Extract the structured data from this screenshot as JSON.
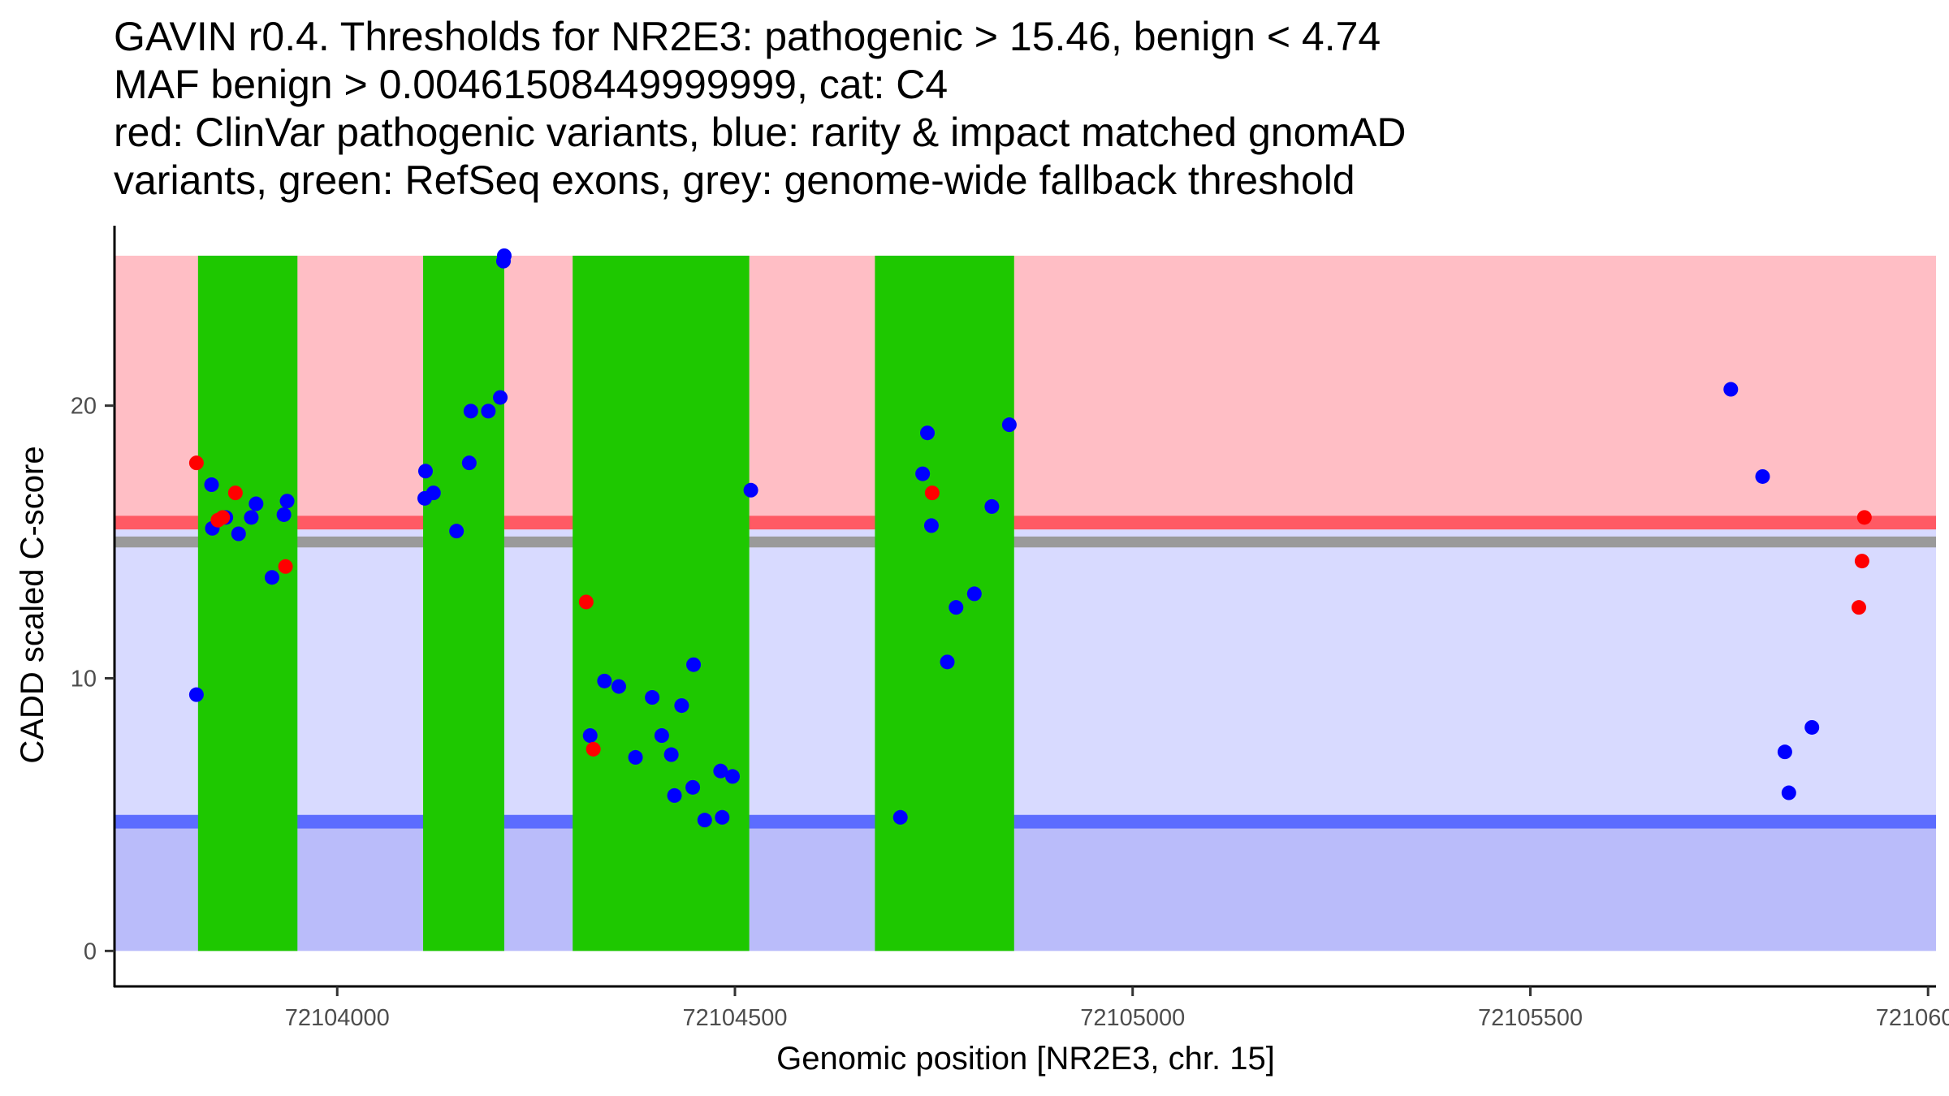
{
  "chart_data": {
    "type": "scatter",
    "title_lines": [
      "GAVIN r0.4. Thresholds for NR2E3: pathogenic > 15.46, benign < 4.74",
      "MAF benign > 0.00461508449999999, cat: C4",
      "red: ClinVar pathogenic variants, blue: rarity & impact matched gnomAD",
      "variants, green: RefSeq exons, grey: genome-wide fallback threshold"
    ],
    "xlabel": "Genomic position [NR2E3, chr. 15]",
    "ylabel": "CADD scaled C-score",
    "xlim": [
      72103720,
      72106010
    ],
    "ylim": [
      -1.3,
      26.6
    ],
    "x_ticks": [
      72104000,
      72104500,
      72105000,
      72105500,
      72106000
    ],
    "x_tick_labels": [
      "72104000",
      "72104500",
      "72105000",
      "72105500",
      "72106000"
    ],
    "y_ticks": [
      0,
      10,
      20
    ],
    "y_tick_labels": [
      "0",
      "10",
      "20"
    ],
    "grid": false,
    "score_max": 25.5,
    "thresholds": {
      "pathogenic": 15.46,
      "benign": 4.74,
      "fallback_low": 14.8,
      "fallback_high": 15.2
    },
    "colors": {
      "pathogenic_region": "#ffbec5",
      "middle_region": "#d8daff",
      "benign_region": "#babcfa",
      "pathogenic_line": "#ff5a64",
      "benign_line": "#5c6cff",
      "fallback_band": "#9a9a9a",
      "exon": "#1ec800",
      "clinvar": "#ff0000",
      "gnomad": "#0000ff"
    },
    "exons": [
      {
        "start": 72103825,
        "end": 72103950
      },
      {
        "start": 72104108,
        "end": 72104210
      },
      {
        "start": 72104296,
        "end": 72104518
      },
      {
        "start": 72104676,
        "end": 72104851
      }
    ],
    "series": [
      {
        "name": "ClinVar pathogenic",
        "color": "#ff0000",
        "points": [
          [
            72103823,
            17.9
          ],
          [
            72103850,
            15.8
          ],
          [
            72103856,
            15.9
          ],
          [
            72103872,
            16.8
          ],
          [
            72103935,
            14.1
          ],
          [
            72104313,
            12.8
          ],
          [
            72104322,
            7.4
          ],
          [
            72104748,
            16.8
          ],
          [
            72105913,
            12.6
          ],
          [
            72105917,
            14.3
          ],
          [
            72105920,
            15.9
          ]
        ]
      },
      {
        "name": "gnomAD matched",
        "color": "#0000ff",
        "points": [
          [
            72103823,
            9.4
          ],
          [
            72103842,
            17.1
          ],
          [
            72103843,
            15.5
          ],
          [
            72103860,
            15.9
          ],
          [
            72103876,
            15.3
          ],
          [
            72103892,
            15.9
          ],
          [
            72103898,
            16.4
          ],
          [
            72103918,
            13.7
          ],
          [
            72103933,
            16.0
          ],
          [
            72103937,
            16.5
          ],
          [
            72104110,
            16.6
          ],
          [
            72104111,
            17.6
          ],
          [
            72104121,
            16.8
          ],
          [
            72104150,
            15.4
          ],
          [
            72104166,
            17.9
          ],
          [
            72104168,
            19.8
          ],
          [
            72104190,
            19.8
          ],
          [
            72104205,
            20.3
          ],
          [
            72104209,
            25.3
          ],
          [
            72104210,
            25.5
          ],
          [
            72104318,
            7.9
          ],
          [
            72104336,
            9.9
          ],
          [
            72104354,
            9.7
          ],
          [
            72104375,
            7.1
          ],
          [
            72104396,
            9.3
          ],
          [
            72104408,
            7.9
          ],
          [
            72104420,
            7.2
          ],
          [
            72104424,
            5.7
          ],
          [
            72104433,
            9.0
          ],
          [
            72104447,
            6.0
          ],
          [
            72104448,
            10.5
          ],
          [
            72104462,
            4.8
          ],
          [
            72104482,
            6.6
          ],
          [
            72104484,
            4.9
          ],
          [
            72104497,
            6.4
          ],
          [
            72104520,
            16.9
          ],
          [
            72104708,
            4.9
          ],
          [
            72104736,
            17.5
          ],
          [
            72104742,
            19.0
          ],
          [
            72104747,
            15.6
          ],
          [
            72104767,
            10.6
          ],
          [
            72104778,
            12.6
          ],
          [
            72104801,
            13.1
          ],
          [
            72104823,
            16.3
          ],
          [
            72104845,
            19.3
          ],
          [
            72105752,
            20.6
          ],
          [
            72105792,
            17.4
          ],
          [
            72105820,
            7.3
          ],
          [
            72105825,
            5.8
          ],
          [
            72105854,
            8.2
          ]
        ]
      }
    ]
  }
}
